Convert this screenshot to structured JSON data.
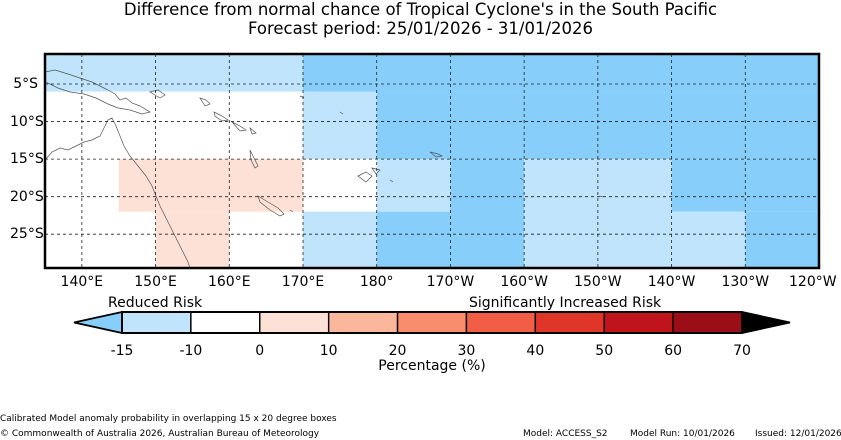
{
  "title": {
    "line1": "Difference from normal chance of Tropical Cyclone's in the South Pacific",
    "line2": "Forecast period: 25/01/2026 - 31/01/2026"
  },
  "map": {
    "lat_labels": [
      "5°S",
      "10°S",
      "15°S",
      "20°S",
      "25°S"
    ],
    "lon_labels": [
      "140°E",
      "150°E",
      "160°E",
      "170°E",
      "180°",
      "170°W",
      "160°W",
      "150°W",
      "140°W",
      "130°W",
      "120°W"
    ],
    "lon_range": [
      135,
      240
    ],
    "lat_range": [
      -29.5,
      -1
    ],
    "cells": [
      {
        "lon0": 135,
        "lon1": 170,
        "lat0": -6,
        "lat1": -1,
        "category": "-15 to -10"
      },
      {
        "lon0": 170,
        "lon1": 240,
        "lat0": -6,
        "lat1": -1,
        "category": "below -15"
      },
      {
        "lon0": 170,
        "lon1": 180,
        "lat0": -15,
        "lat1": -6,
        "category": "-15 to -10"
      },
      {
        "lon0": 180,
        "lon1": 240,
        "lat0": -15,
        "lat1": -6,
        "category": "below -15"
      },
      {
        "lon0": 145,
        "lon1": 170,
        "lat0": -22,
        "lat1": -15,
        "category": "0 to 10"
      },
      {
        "lon0": 150,
        "lon1": 160,
        "lat0": -29.5,
        "lat1": -22,
        "category": "0 to 10"
      },
      {
        "lon0": 180,
        "lon1": 190,
        "lat0": -22,
        "lat1": -15,
        "category": "-15 to -10"
      },
      {
        "lon0": 190,
        "lon1": 200,
        "lat0": -29.5,
        "lat1": -15,
        "category": "below -15"
      },
      {
        "lon0": 200,
        "lon1": 220,
        "lat0": -29.5,
        "lat1": -15,
        "category": "-15 to -10"
      },
      {
        "lon0": 220,
        "lon1": 240,
        "lat0": -22,
        "lat1": -15,
        "category": "below -15"
      },
      {
        "lon0": 220,
        "lon1": 230,
        "lat0": -29.5,
        "lat1": -22,
        "category": "-15 to -10"
      },
      {
        "lon0": 230,
        "lon1": 240,
        "lat0": -29.5,
        "lat1": -22,
        "category": "below -15"
      },
      {
        "lon0": 170,
        "lon1": 180,
        "lat0": -29.5,
        "lat1": -22,
        "category": "-15 to -10"
      },
      {
        "lon0": 180,
        "lon1": 190,
        "lat0": -29.5,
        "lat1": -22,
        "category": "below -15"
      }
    ]
  },
  "colorbar": {
    "left_label": "Reduced Risk",
    "right_label": "Significantly Increased Risk",
    "ticks": [
      "-15",
      "-10",
      "0",
      "10",
      "20",
      "30",
      "40",
      "50",
      "60",
      "70"
    ],
    "xlabel": "Percentage (%)",
    "under_color": "#87cefa",
    "over_color": "#000000",
    "colors": [
      "#bfe4fb",
      "#ffffff",
      "#fde0d6",
      "#fbb79c",
      "#f98c6c",
      "#f25d45",
      "#e0362a",
      "#c0141c",
      "#9c0e16"
    ]
  },
  "palette": {
    "below -15": "#87cefa",
    "-15 to -10": "#bfe4fb",
    "0 to 10": "#fde0d6"
  },
  "footer": {
    "note": "Calibrated Model anomaly probability in overlapping 15 x 20 degree boxes",
    "copyright": "© Commonwealth of Australia 2026, Australian Bureau of Meteorology",
    "model": "Model: ACCESS_S2",
    "model_run": "Model Run: 10/01/2026",
    "issued": "Issued: 12/01/2026"
  }
}
